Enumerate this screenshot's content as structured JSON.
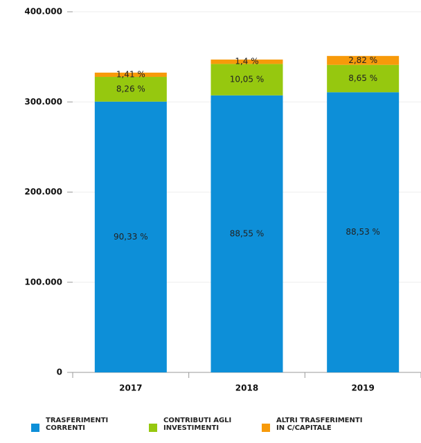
{
  "chart_data": {
    "type": "stacked_bar",
    "categories": [
      "2017",
      "2018",
      "2019"
    ],
    "series": [
      {
        "name": "TRASFERIMENTI CORRENTI",
        "color": "#0d8fd8",
        "values": [
          300350,
          307270,
          310740
        ],
        "labels": [
          "90,33 %",
          "88,55 %",
          "88,53 %"
        ]
      },
      {
        "name": "CONTRIBUTI AGLI INVESTIMENTI",
        "color": "#96c80f",
        "values": [
          27460,
          34870,
          30360
        ],
        "labels": [
          "8,26 %",
          "10,05 %",
          "8,65 %"
        ]
      },
      {
        "name": "ALTRI TRASFERIMENTI IN C/CAPITALE",
        "color": "#f79a0a",
        "values": [
          4690,
          4860,
          9900
        ],
        "labels": [
          "1,41 %",
          "1,4 %",
          "2,82 %"
        ]
      }
    ],
    "ylim": [
      0,
      400000
    ],
    "yticks": [
      0,
      {
        "value": 100000,
        "label": "100.000"
      },
      {
        "value": 200000,
        "label": "200.000"
      },
      {
        "value": 300000,
        "label": "300.000"
      },
      {
        "value": 400000,
        "label": "400.000"
      }
    ],
    "grid": true
  }
}
